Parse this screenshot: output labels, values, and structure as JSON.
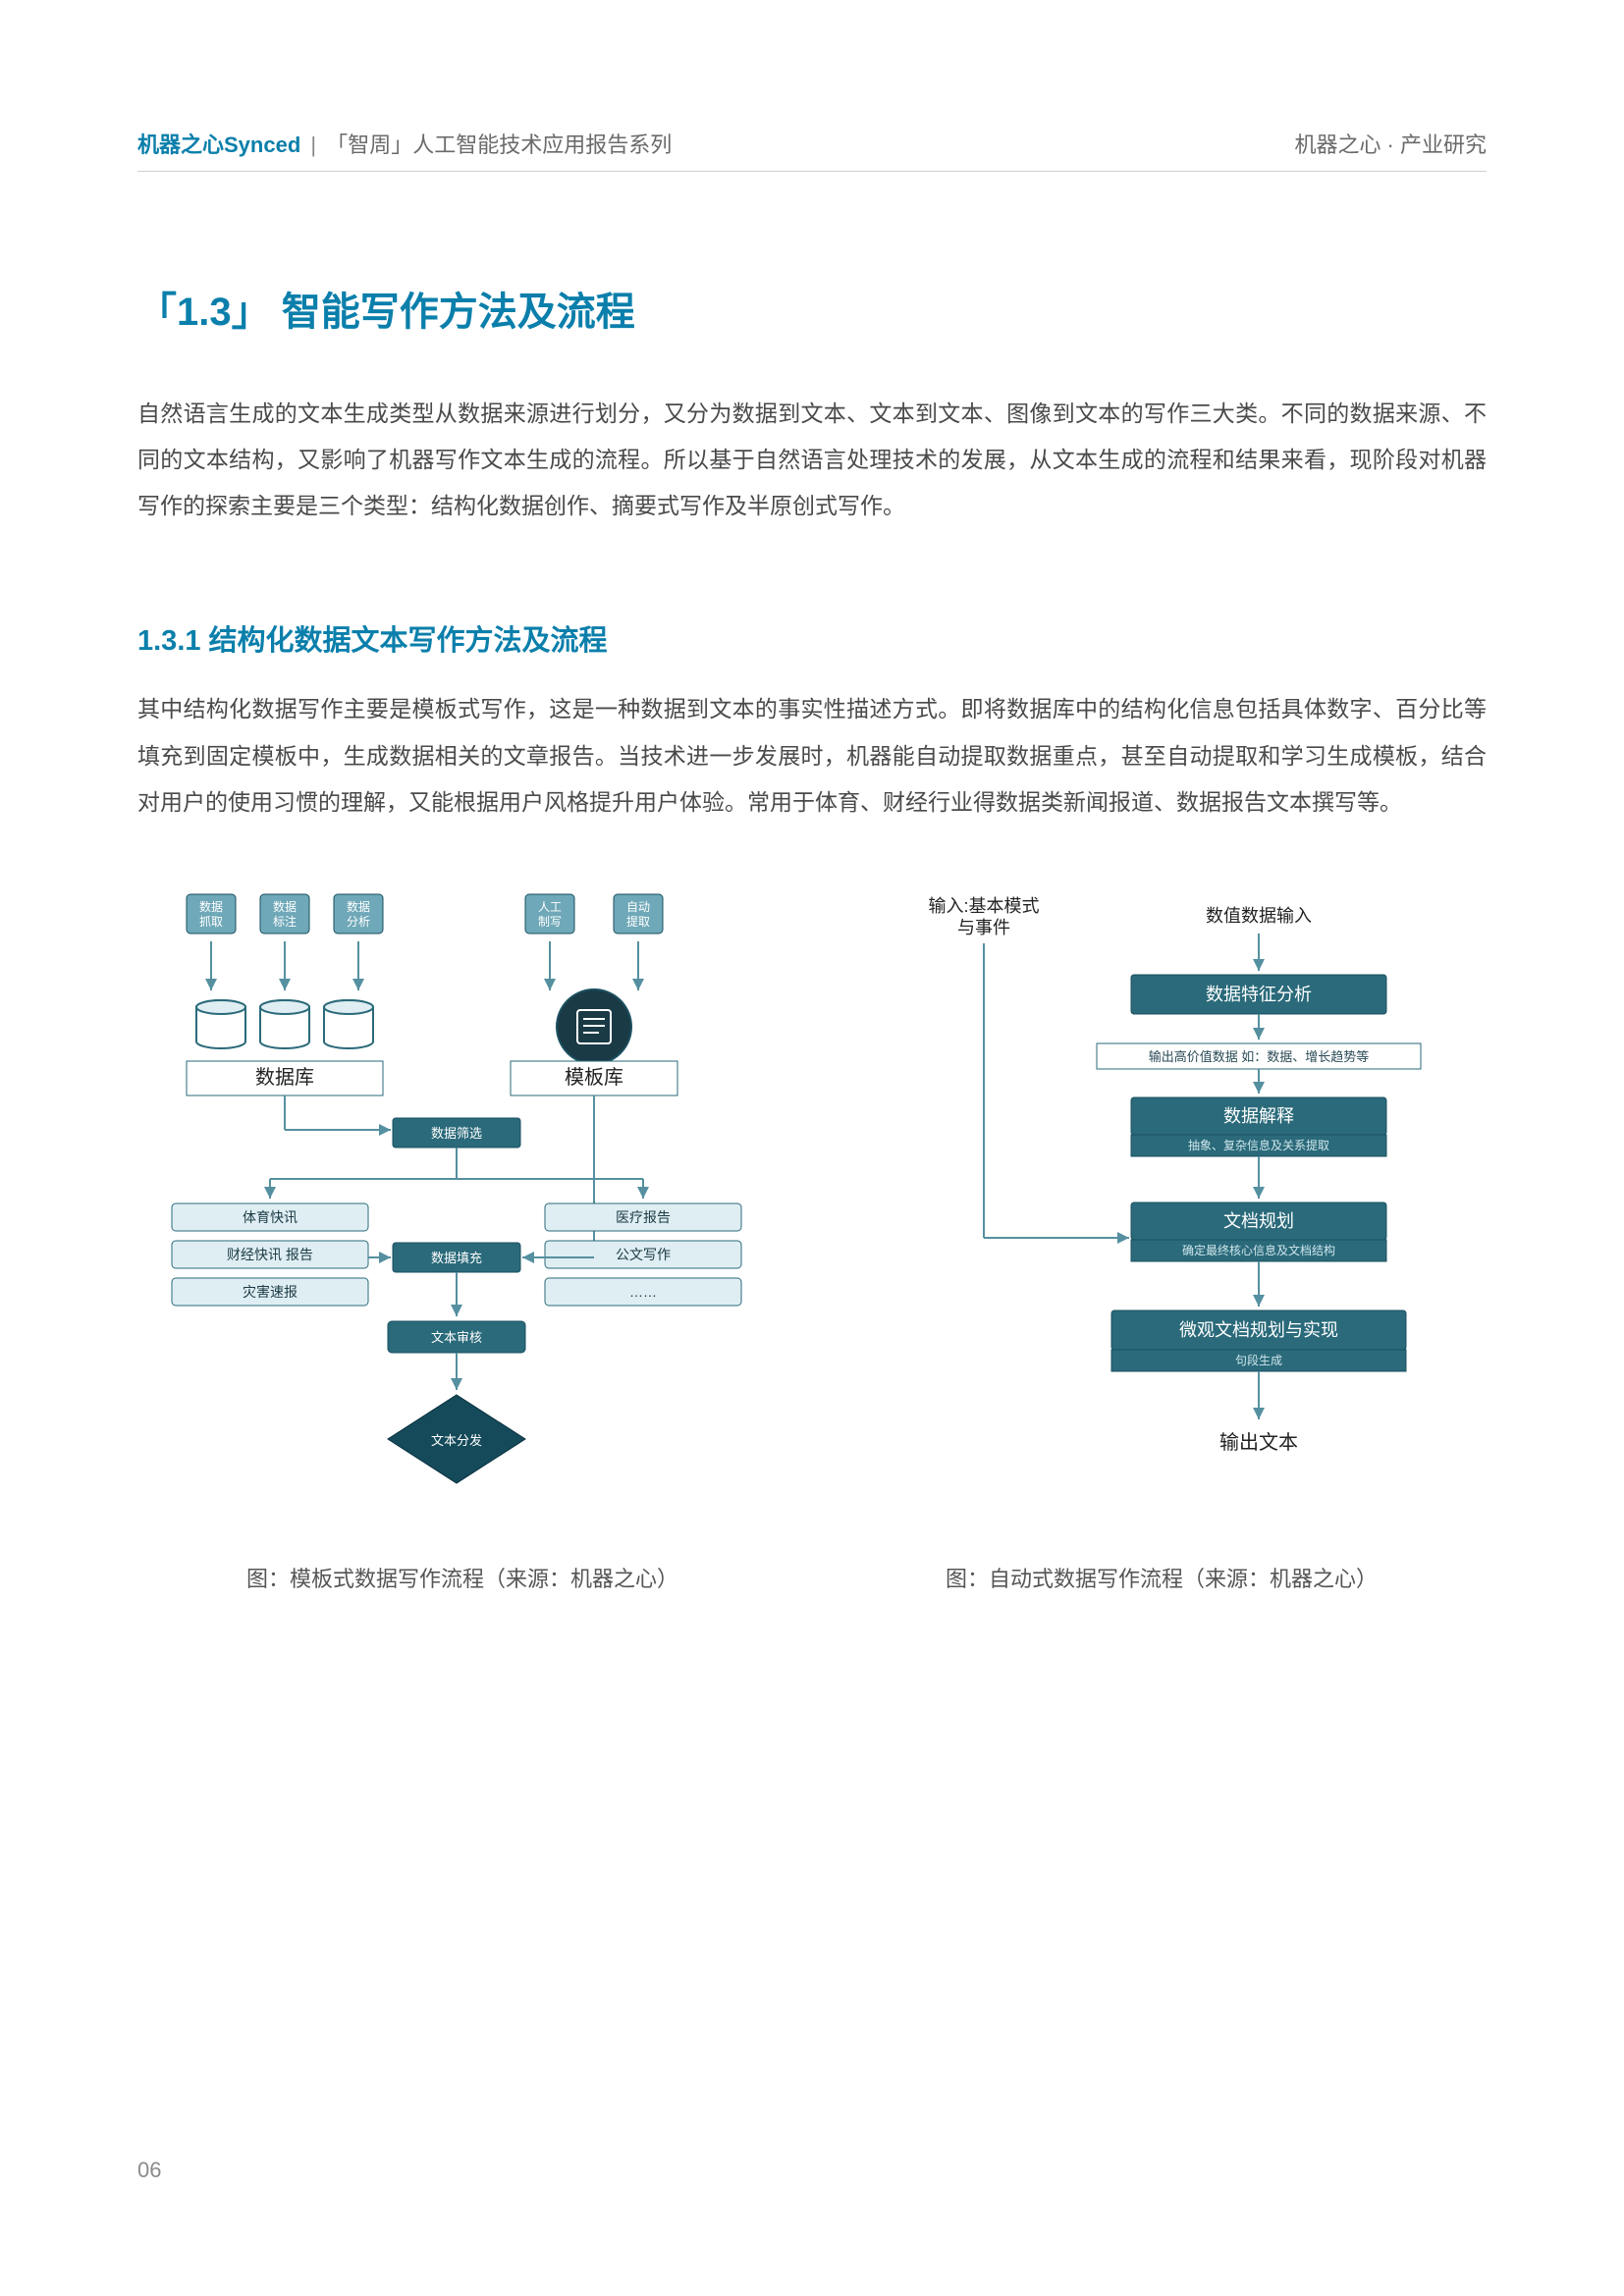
{
  "header": {
    "brand": "机器之心Synced",
    "separator": "|",
    "series": "「智周」人工智能技术应用报告系列",
    "right": "机器之心 · 产业研究"
  },
  "section": {
    "title": "「1.3」 智能写作方法及流程",
    "paragraph": "自然语言生成的文本生成类型从数据来源进行划分，又分为数据到文本、文本到文本、图像到文本的写作三大类。不同的数据来源、不同的文本结构，又影响了机器写作文本生成的流程。所以基于自然语言处理技术的发展，从文本生成的流程和结果来看，现阶段对机器写作的探索主要是三个类型：结构化数据创作、摘要式写作及半原创式写作。"
  },
  "subsection": {
    "title": "1.3.1 结构化数据文本写作方法及流程",
    "paragraph": "其中结构化数据写作主要是模板式写作，这是一种数据到文本的事实性描述方式。即将数据库中的结构化信息包括具体数字、百分比等填充到固定模板中，生成数据相关的文章报告。当技术进一步发展时，机器能自动提取数据重点，甚至自动提取和学习生成模板，结合对用户的使用习惯的理解，又能根据用户风格提升用户体验。常用于体育、财经行业得数据类新闻报道、数据报告文本撰写等。"
  },
  "colors": {
    "accent": "#0b7fab",
    "node_fill": "#6fa8b8",
    "node_fill_dark": "#2a6a7a",
    "node_border": "#1a5060",
    "light_box": "#dfeef2",
    "arrow": "#5590a0",
    "diamond": "#144a5a",
    "text_dark": "#1a3a45",
    "text_white": "#ffffff"
  },
  "diagram_left": {
    "type": "flowchart",
    "caption": "图：模板式数据写作流程（来源：机器之心）",
    "top_row": [
      {
        "label1": "数据",
        "label2": "抓取"
      },
      {
        "label1": "数据",
        "label2": "标注"
      },
      {
        "label1": "数据",
        "label2": "分析"
      },
      {
        "label1": "人工",
        "label2": "制写"
      },
      {
        "label1": "自动",
        "label2": "提取"
      }
    ],
    "db_label": "数据库",
    "tpl_label": "模板库",
    "data_filter": "数据筛选",
    "left_leaves": [
      "体育快讯",
      "财经快讯  报告",
      "灾害速报"
    ],
    "right_leaves": [
      "医疗报告",
      "公文写作",
      "……"
    ],
    "data_fill": "数据填充",
    "review": "文本审核",
    "publish": "文本分发"
  },
  "diagram_right": {
    "type": "flowchart",
    "caption": "图：自动式数据写作流程（来源：机器之心）",
    "input_left_1": "输入:基本模式",
    "input_left_2": "与事件",
    "input_right": "数值数据输入",
    "step1": "数据特征分析",
    "step1_sub": "输出高价值数据  如：数据、增长趋势等",
    "step2": "数据解释",
    "step2_sub": "抽象、复杂信息及关系提取",
    "step3": "文档规划",
    "step3_sub": "确定最终核心信息及文档结构",
    "step4": "微观文档规划与实现",
    "step4_sub": "句段生成",
    "output": "输出文本"
  },
  "page_number": "06"
}
